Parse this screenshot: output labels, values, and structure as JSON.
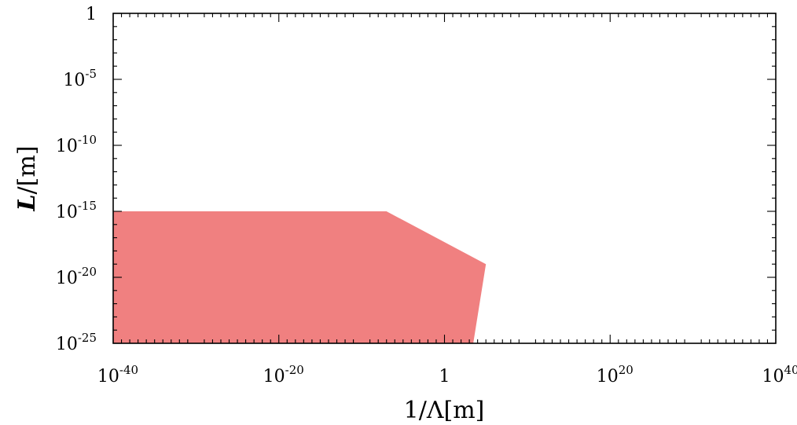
{
  "chart_data": {
    "type": "area",
    "title": "",
    "xlabel": "1/Λ[m]",
    "ylabel_main": "L",
    "ylabel_unit": "/[m]",
    "x_scale": "log",
    "y_scale": "log",
    "xlim": [
      1e-40,
      1e+40
    ],
    "ylim": [
      1e-25,
      1
    ],
    "grid": false,
    "legend": "none",
    "x_ticks": [
      {
        "value": 1e-40,
        "base": "10",
        "exp": "-40"
      },
      {
        "value": 1e-20,
        "base": "10",
        "exp": "-20"
      },
      {
        "value": 1,
        "base": "1",
        "exp": ""
      },
      {
        "value": 1e+20,
        "base": "10",
        "exp": "20"
      },
      {
        "value": 1e+40,
        "base": "10",
        "exp": "40"
      }
    ],
    "y_ticks": [
      {
        "value": 1,
        "base": "1",
        "exp": ""
      },
      {
        "value": 1e-05,
        "base": "10",
        "exp": "-5"
      },
      {
        "value": 1e-10,
        "base": "10",
        "exp": "-10"
      },
      {
        "value": 1e-15,
        "base": "10",
        "exp": "-15"
      },
      {
        "value": 1e-20,
        "base": "10",
        "exp": "-20"
      },
      {
        "value": 1e-25,
        "base": "10",
        "exp": "-25"
      }
    ],
    "excluded_region": {
      "color": "#f08080",
      "points": [
        {
          "x": 1e-40,
          "y": 1e-25
        },
        {
          "x": 1e-40,
          "y": 1e-15
        },
        {
          "x": 1e-07,
          "y": 1e-15
        },
        {
          "x": 100000.0,
          "y": 1e-19
        },
        {
          "x": 3000.0,
          "y": 1e-25
        }
      ]
    }
  }
}
